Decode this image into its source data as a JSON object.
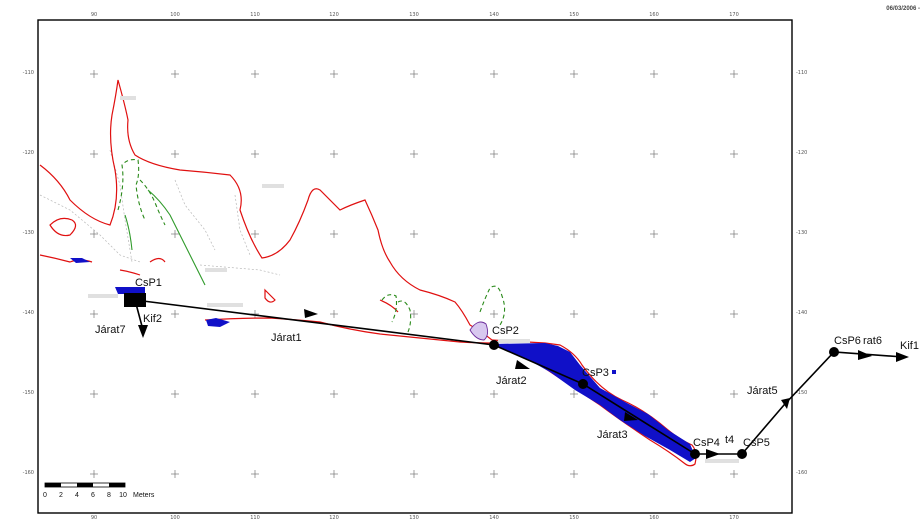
{
  "date_stamp": "06/03/2006 -",
  "axis_top": [
    "90",
    "100",
    "110",
    "120",
    "130",
    "140",
    "150",
    "160",
    "170"
  ],
  "axis_bottom": [
    "90",
    "100",
    "110",
    "120",
    "130",
    "140",
    "150",
    "160",
    "170"
  ],
  "axis_left": [
    "-110",
    "-120",
    "-130",
    "-140",
    "-150",
    "-160"
  ],
  "axis_right": [
    "-110",
    "-120",
    "-130",
    "-140",
    "-150",
    "-160"
  ],
  "scale_bar": {
    "ticks": [
      "0",
      "2",
      "4",
      "6",
      "8",
      "10"
    ],
    "unit": "Meters"
  },
  "stations": [
    {
      "id": "CsP1",
      "label": "CsP1"
    },
    {
      "id": "CsP2",
      "label": "CsP2"
    },
    {
      "id": "CsP3",
      "label": "CsP3"
    },
    {
      "id": "CsP4",
      "label": "CsP4"
    },
    {
      "id": "CsP5",
      "label": "CsP5"
    },
    {
      "id": "CsP6",
      "label": "CsP6"
    }
  ],
  "route_labels": {
    "jarat1": "Járat1",
    "jarat2": "Járat2",
    "jarat3": "Járat3",
    "jarat5": "Járat5",
    "jarat6": "rat6",
    "jarat7": "Járat7",
    "t4": "t4",
    "kif1": "Kif1",
    "kif2": "Kif2"
  },
  "colors": {
    "wall": "#e01010",
    "green_dashed": "#2a8a1a",
    "green_solid": "#2f9a2a",
    "fill_blue": "#1010c8",
    "purple": "#6a2a9a",
    "route": "#000000",
    "frame": "#000000",
    "grid_cross": "#777777"
  }
}
